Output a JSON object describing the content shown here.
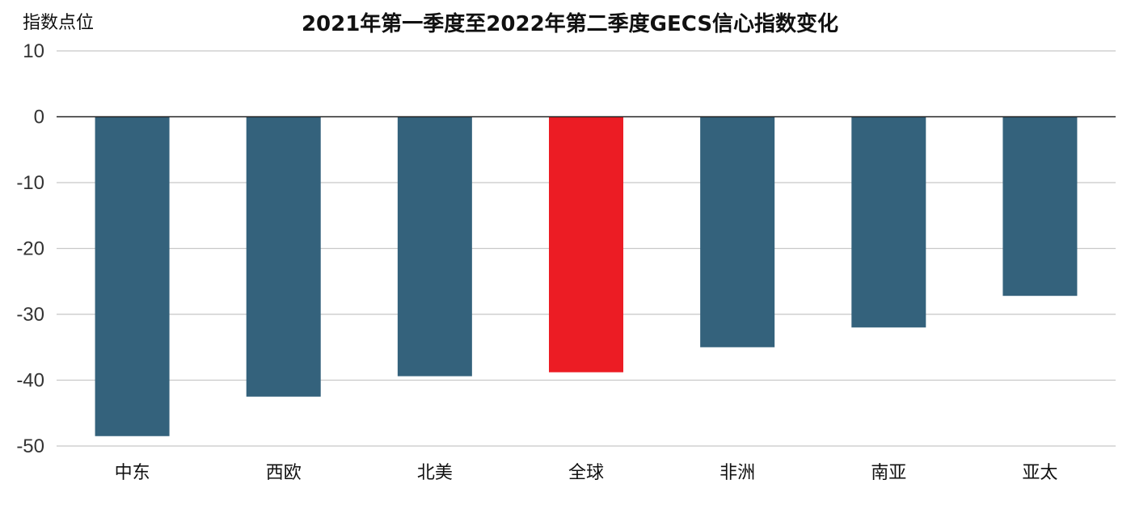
{
  "chart_data": {
    "type": "bar",
    "title": "2021年第一季度至2022年第二季度GECS信心指数变化",
    "ylabel": "指数点位",
    "xlabel": "",
    "ylim": [
      -50,
      10
    ],
    "yticks": [
      10,
      0,
      -10,
      -20,
      -30,
      -40,
      -50
    ],
    "categories": [
      "中东",
      "西欧",
      "北美",
      "全球",
      "非洲",
      "南亚",
      "亚太"
    ],
    "values": [
      -48.5,
      -42.5,
      -39.4,
      -38.8,
      -35.0,
      -32.0,
      -27.2
    ],
    "colors": [
      "#34627c",
      "#34627c",
      "#34627c",
      "#ec1c24",
      "#34627c",
      "#34627c",
      "#34627c"
    ],
    "grid": true
  }
}
